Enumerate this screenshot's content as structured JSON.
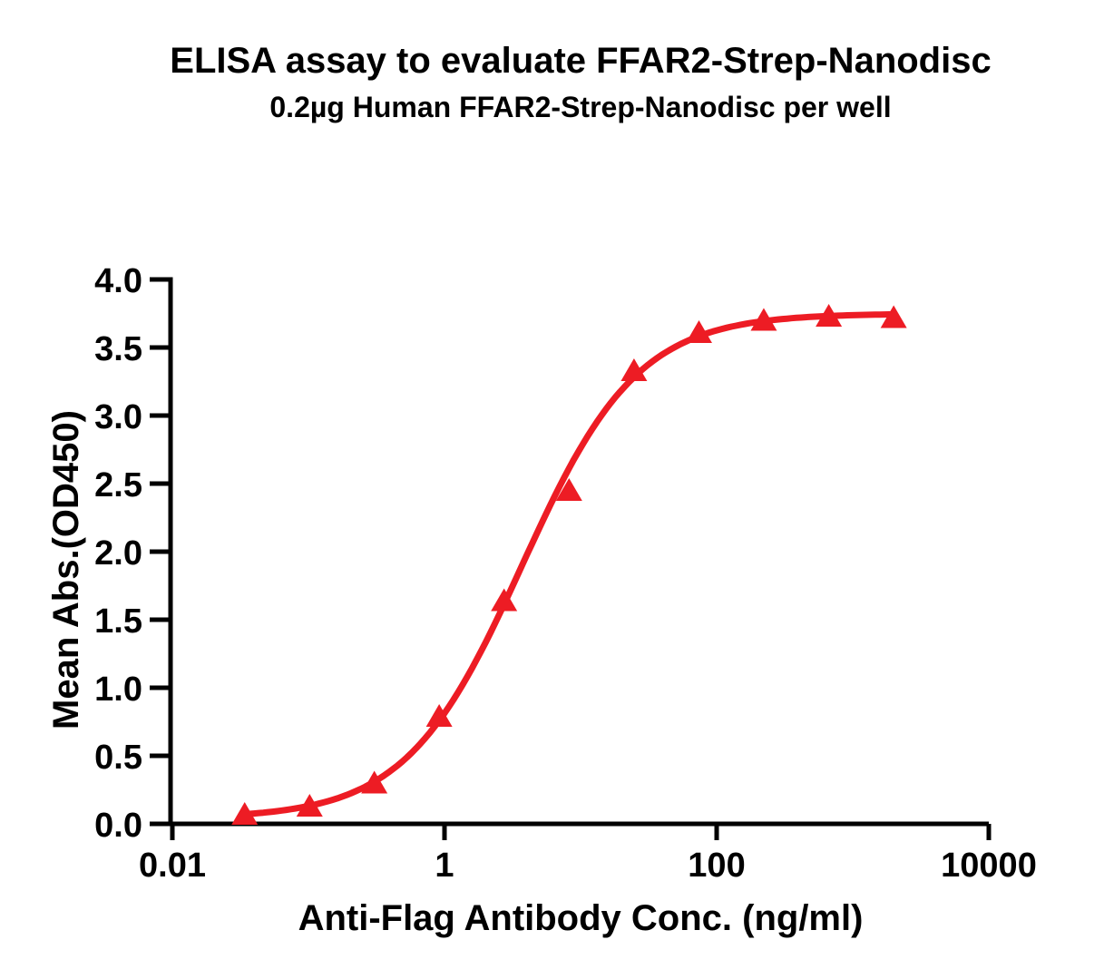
{
  "chart_data": {
    "type": "scatter",
    "title": "ELISA assay to evaluate FFAR2-Strep-Nanodisc",
    "subtitle": "0.2µg Human FFAR2-Strep-Nanodisc per well",
    "xlabel": "Anti-Flag Antibody Conc. (ng/ml)",
    "ylabel": "Mean Abs.(OD450)",
    "x_scale": "log10",
    "xlim": [
      0.01,
      10000
    ],
    "ylim": [
      0.0,
      4.0
    ],
    "grid": false,
    "legend": "none",
    "x_ticks": [
      {
        "value": 0.01,
        "label": "0.01"
      },
      {
        "value": 1,
        "label": "1"
      },
      {
        "value": 100,
        "label": "100"
      },
      {
        "value": 10000,
        "label": "10000"
      }
    ],
    "y_ticks": [
      {
        "value": 0.0,
        "label": "0.0"
      },
      {
        "value": 0.5,
        "label": "0.5"
      },
      {
        "value": 1.0,
        "label": "1.0"
      },
      {
        "value": 1.5,
        "label": "1.5"
      },
      {
        "value": 2.0,
        "label": "2.0"
      },
      {
        "value": 2.5,
        "label": "2.5"
      },
      {
        "value": 3.0,
        "label": "3.0"
      },
      {
        "value": 3.5,
        "label": "3.5"
      },
      {
        "value": 4.0,
        "label": "4.0"
      }
    ],
    "series": [
      {
        "marker": "filled-triangle-up",
        "color": "#ED1C24",
        "points": [
          {
            "x": 0.034,
            "y": 0.07
          },
          {
            "x": 0.102,
            "y": 0.13
          },
          {
            "x": 0.305,
            "y": 0.3
          },
          {
            "x": 0.914,
            "y": 0.79
          },
          {
            "x": 2.74,
            "y": 1.64
          },
          {
            "x": 8.23,
            "y": 2.45
          },
          {
            "x": 24.7,
            "y": 3.33
          },
          {
            "x": 74.1,
            "y": 3.61
          },
          {
            "x": 222,
            "y": 3.7
          },
          {
            "x": 667,
            "y": 3.73
          },
          {
            "x": 2000,
            "y": 3.72
          }
        ]
      }
    ],
    "fit_curve": {
      "model": "4PL",
      "bottom": 0.04,
      "top": 3.75,
      "ec50": 3.7,
      "hill": 1.02,
      "x_start": 0.034,
      "x_end": 2000,
      "color": "#ED1C24"
    },
    "axis_color": "#000000",
    "background_color": "#FFFFFF"
  }
}
